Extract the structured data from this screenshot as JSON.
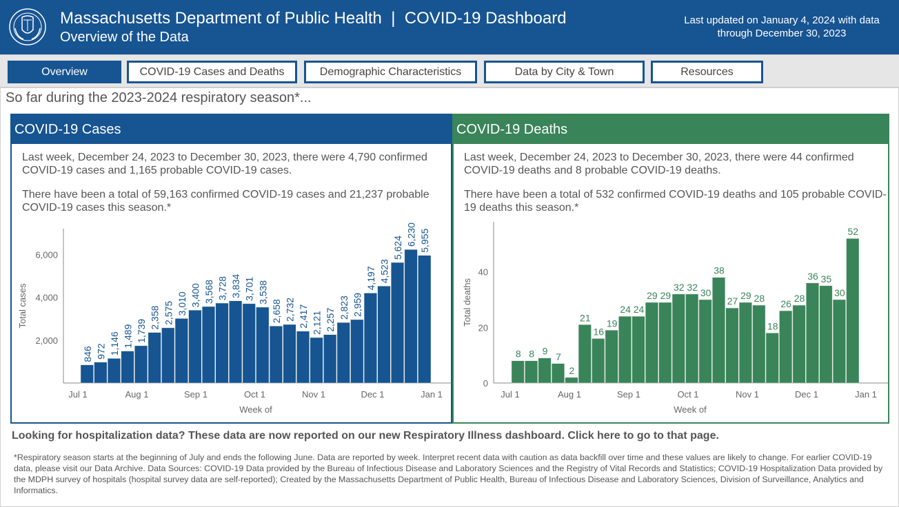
{
  "header": {
    "title": "Massachusetts Department of Public Health  |  COVID-19 Dashboard",
    "subtitle": "Overview of the Data",
    "updated_line1": "Last updated on January 4, 2024 with data",
    "updated_line2": "through December 30, 2023",
    "seal_icon": "massachusetts-dph-seal"
  },
  "nav": {
    "tabs": [
      {
        "label": "Overview",
        "active": true
      },
      {
        "label": "COVID-19 Cases and Deaths",
        "active": false
      },
      {
        "label": "Demographic Characteristics",
        "active": false
      },
      {
        "label": "Data by City & Town",
        "active": false
      },
      {
        "label": "Resources",
        "active": false
      }
    ]
  },
  "intro": "So far during the 2023-2024 respiratory season*...",
  "cases_panel": {
    "title": "COVID-19 Cases",
    "para1": "Last week, December 24, 2023 to December 30, 2023, there were 4,790 confirmed COVID-19 cases and 1,165 probable COVID-19 cases.",
    "para2": "There have been a total of 59,163 confirmed COVID-19 cases and 21,237 probable COVID-19 cases this season.*",
    "color": "#175492"
  },
  "deaths_panel": {
    "title": "COVID-19 Deaths",
    "para1": "Last week, December 24, 2023 to December 30, 2023, there were 44 confirmed COVID-19 deaths and 8 probable COVID-19 deaths.",
    "para2": "There have been a total of 532 confirmed COVID-19 deaths and 105 probable COVID-19 deaths this season.*",
    "color": "#3a845a"
  },
  "chart_data": [
    {
      "type": "bar",
      "title": "COVID-19 Cases",
      "xlabel": "Week of",
      "ylabel": "Total cases",
      "x_ticks": [
        "Jul 1",
        "Aug 1",
        "Sep 1",
        "Oct 1",
        "Nov 1",
        "Dec 1",
        "Jan 1"
      ],
      "y_ticks": [
        2000,
        4000,
        6000
      ],
      "y_tick_labels": [
        "2,000",
        "4,000",
        "6,000"
      ],
      "ylim": [
        0,
        7200
      ],
      "grid": false,
      "label_rotation": "vertical",
      "bar_color": "#175492",
      "label_color": "#175492",
      "values": [
        846,
        972,
        1146,
        1489,
        1739,
        2358,
        2575,
        3010,
        3400,
        3568,
        3728,
        3834,
        3701,
        3538,
        2658,
        2732,
        2417,
        2121,
        2257,
        2823,
        2959,
        4197,
        4523,
        5624,
        6230,
        5955
      ],
      "labels": [
        "846",
        "972",
        "1,146",
        "1,489",
        "1,739",
        "2,358",
        "2,575",
        "3,010",
        "3,400",
        "3,568",
        "3,728",
        "3,834",
        "3,701",
        "3,538",
        "2,658",
        "2,732",
        "2,417",
        "2,121",
        "2,257",
        "2,823",
        "2,959",
        "4,197",
        "4,523",
        "5,624",
        "6,230",
        "5,955"
      ]
    },
    {
      "type": "bar",
      "title": "COVID-19 Deaths",
      "xlabel": "Week of",
      "ylabel": "Total deaths",
      "x_ticks": [
        "Jul 1",
        "Aug 1",
        "Sep 1",
        "Oct 1",
        "Nov 1",
        "Dec 1",
        "Jan 1"
      ],
      "y_ticks": [
        0,
        20,
        40
      ],
      "y_tick_labels": [
        "0",
        "20",
        "40"
      ],
      "ylim": [
        0,
        58
      ],
      "grid": false,
      "label_rotation": "horizontal",
      "bar_color": "#3a845a",
      "label_color": "#3a845a",
      "values": [
        8,
        8,
        9,
        7,
        2,
        21,
        16,
        19,
        24,
        24,
        29,
        29,
        32,
        32,
        30,
        38,
        27,
        29,
        28,
        18,
        26,
        28,
        36,
        35,
        30,
        52
      ],
      "labels": [
        "8",
        "8",
        "9",
        "7",
        "2",
        "21",
        "16",
        "19",
        "24",
        "24",
        "29",
        "29",
        "32",
        "32",
        "30",
        "38",
        "27",
        "29",
        "28",
        "18",
        "26",
        "28",
        "36",
        "35",
        "30",
        "52"
      ]
    }
  ],
  "hospitalization_link": "Looking for hospitalization data? These data are now reported on our new Respiratory Illness dashboard. Click here to go to that page.",
  "footnote": "*Respiratory season starts at the beginning of July and ends the following June. Data are reported by week. Interpret recent data with caution as data backfill over time and these values are likely to change. For earlier COVID-19 data, please visit our Data Archive. Data Sources: COVID-19 Data provided by the Bureau of Infectious Disease and Laboratory Sciences and the Registry of Vital Records and Statistics; COVID-19 Hospitalization Data provided by the MDPH survey of hospitals (hospital survey data are self-reported); Created by the Massachusetts Department of Public Health, Bureau of Infectious Disease and Laboratory Sciences, Division of Surveillance, Analytics and Informatics."
}
